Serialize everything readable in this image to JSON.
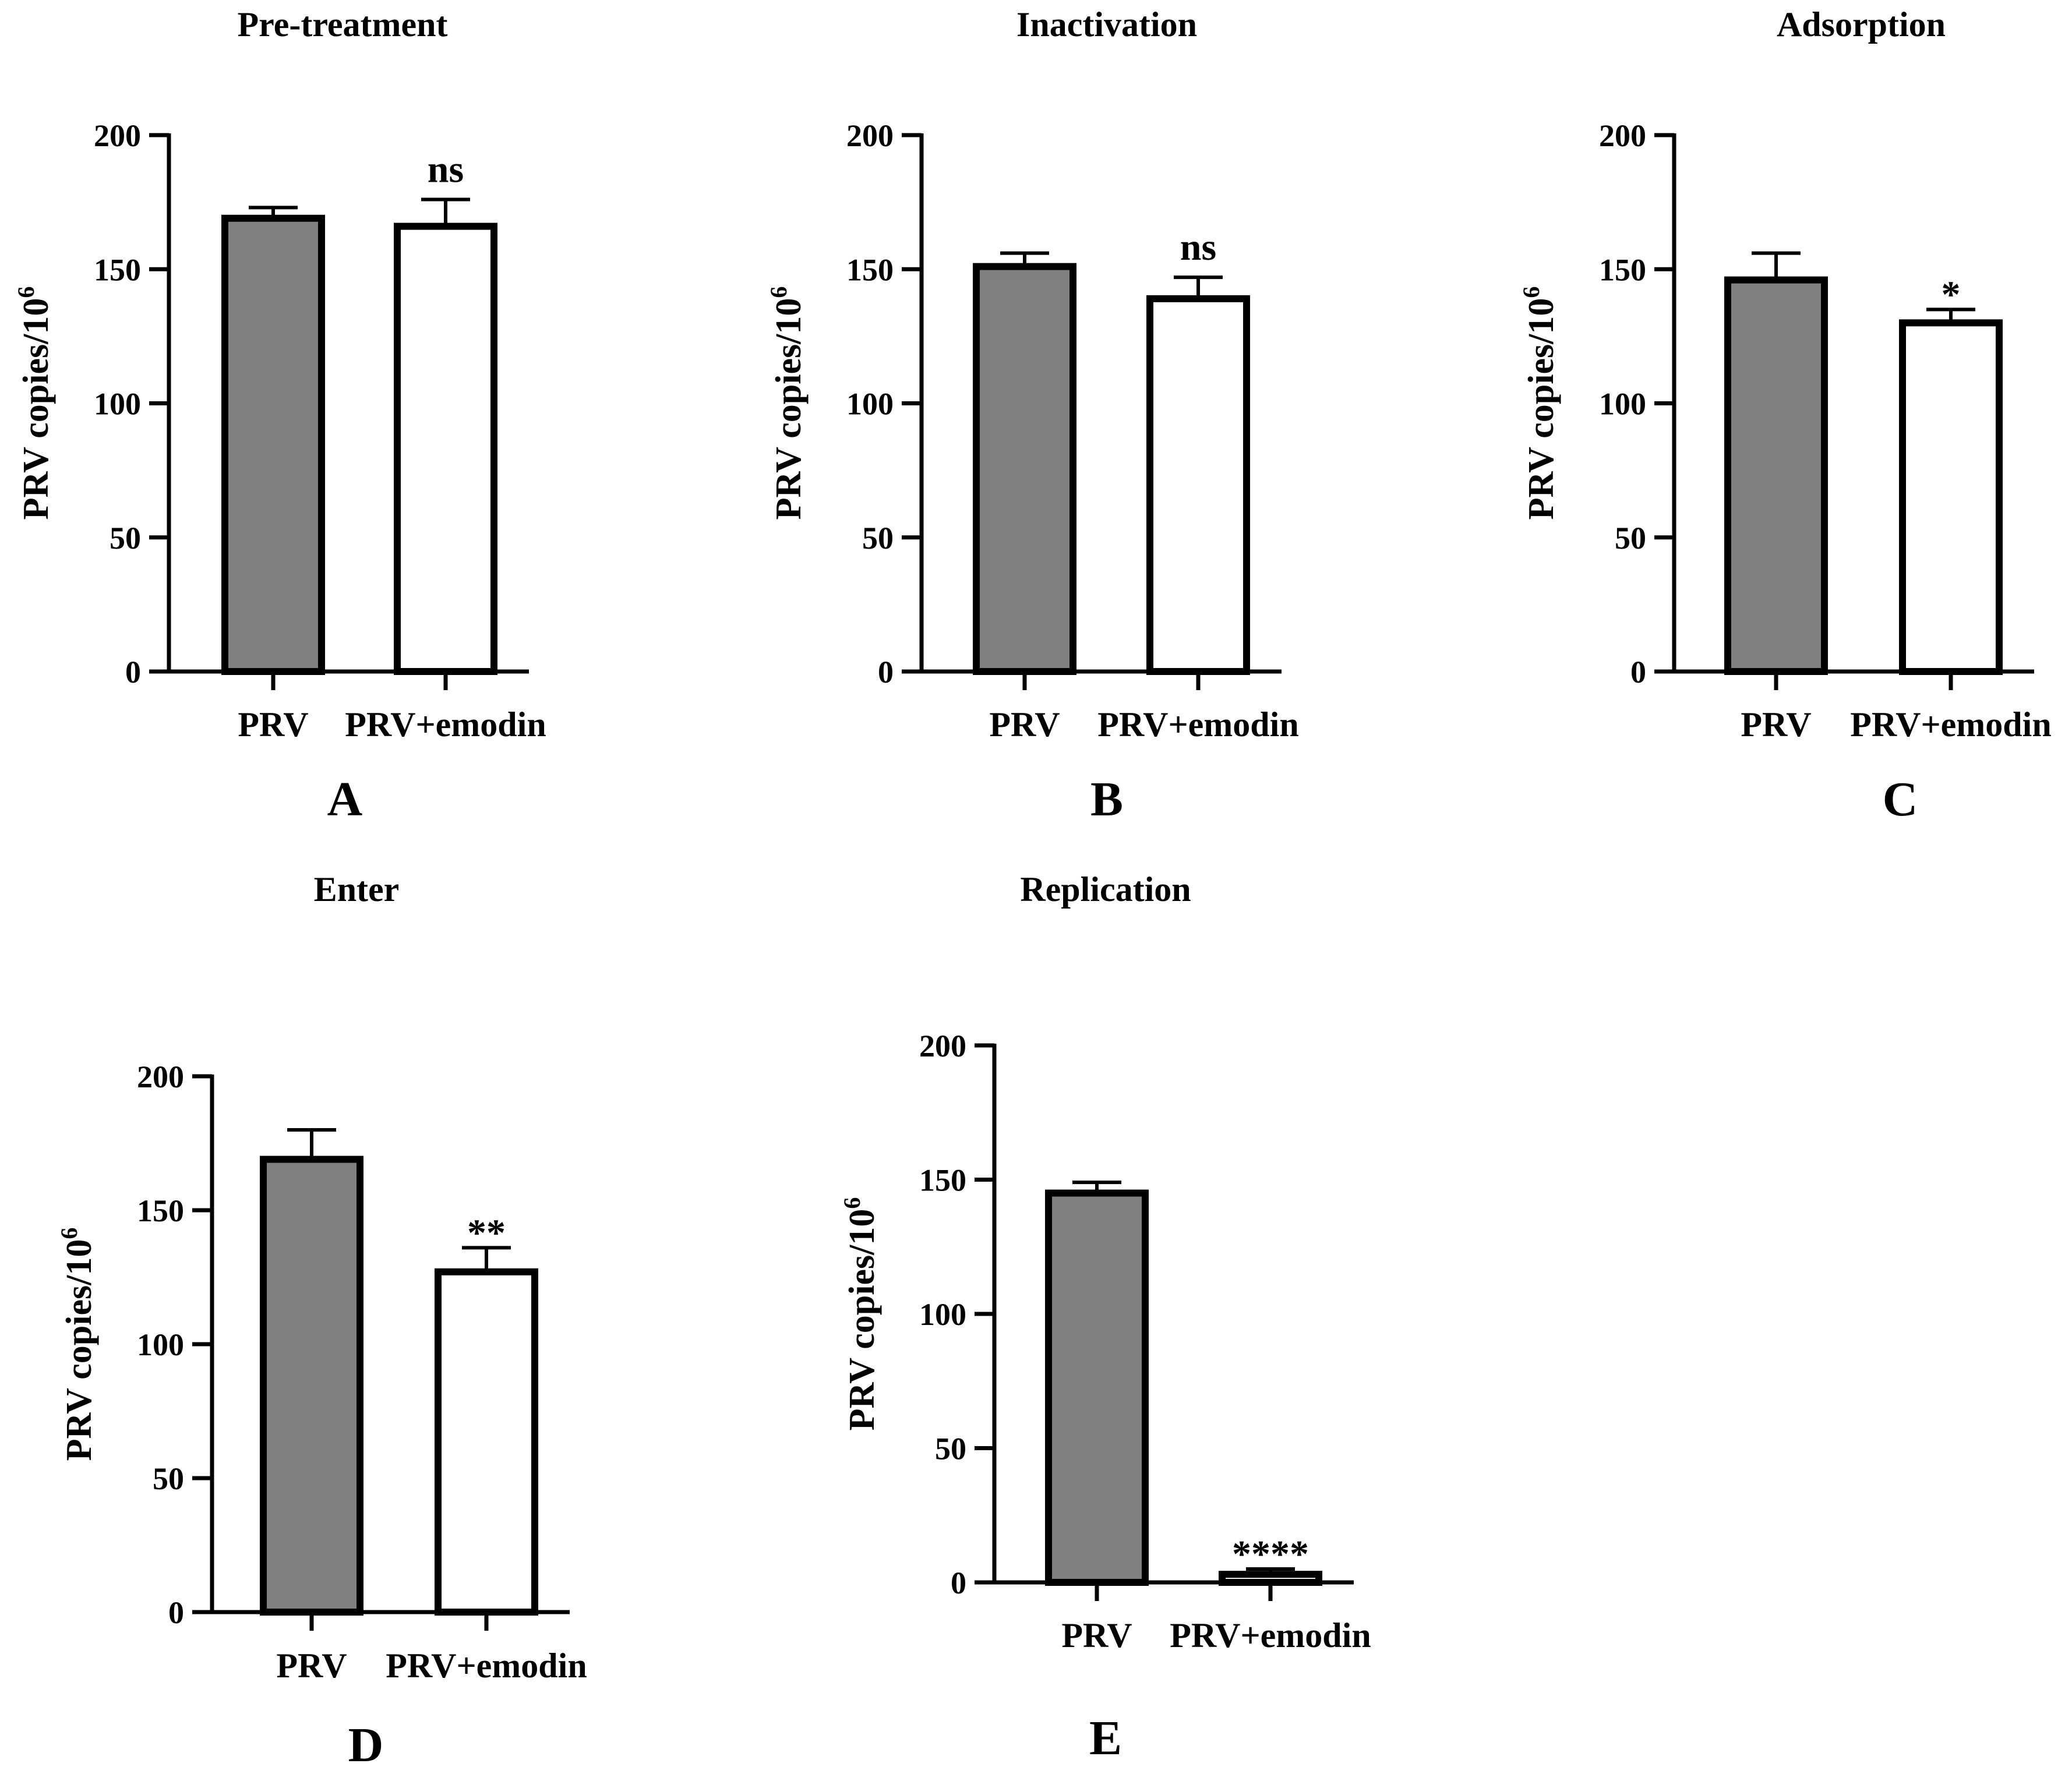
{
  "figure": {
    "panels": [
      {
        "letter": "A",
        "title": "Pre-treatment"
      },
      {
        "letter": "B",
        "title": "Inactivation"
      },
      {
        "letter": "C",
        "title": "Adsorption"
      },
      {
        "letter": "D",
        "title": "Enter"
      },
      {
        "letter": "E",
        "title": "Replication"
      }
    ]
  },
  "chart_data": [
    {
      "type": "bar",
      "panel": "A",
      "title": "Pre-treatment",
      "ylabel": "PRV copies/10",
      "ylabel_superscript": "6",
      "ylim": [
        0,
        200
      ],
      "yticks": [
        0,
        50,
        100,
        150,
        200
      ],
      "categories": [
        "PRV",
        "PRV+emodin"
      ],
      "values": [
        169,
        166
      ],
      "errors": [
        4,
        10
      ],
      "fills": [
        "#808080",
        "#ffffff"
      ],
      "significance": [
        "",
        "ns"
      ]
    },
    {
      "type": "bar",
      "panel": "B",
      "title": "Inactivation",
      "ylabel": "PRV copies/10",
      "ylabel_superscript": "6",
      "ylim": [
        0,
        200
      ],
      "yticks": [
        0,
        50,
        100,
        150,
        200
      ],
      "categories": [
        "PRV",
        "PRV+emodin"
      ],
      "values": [
        151,
        139
      ],
      "errors": [
        5,
        8
      ],
      "fills": [
        "#808080",
        "#ffffff"
      ],
      "significance": [
        "",
        "ns"
      ]
    },
    {
      "type": "bar",
      "panel": "C",
      "title": "Adsorption",
      "ylabel": "PRV copies/10",
      "ylabel_superscript": "6",
      "ylim": [
        0,
        200
      ],
      "yticks": [
        0,
        50,
        100,
        150,
        200
      ],
      "categories": [
        "PRV",
        "PRV+emodin"
      ],
      "values": [
        146,
        130
      ],
      "errors": [
        10,
        5
      ],
      "fills": [
        "#808080",
        "#ffffff"
      ],
      "significance": [
        "",
        "*"
      ]
    },
    {
      "type": "bar",
      "panel": "D",
      "title": "Enter",
      "ylabel": "PRV copies/10",
      "ylabel_superscript": "6",
      "ylim": [
        0,
        200
      ],
      "yticks": [
        0,
        50,
        100,
        150,
        200
      ],
      "categories": [
        "PRV",
        "PRV+emodin"
      ],
      "values": [
        169,
        127
      ],
      "errors": [
        11,
        9
      ],
      "fills": [
        "#808080",
        "#ffffff"
      ],
      "significance": [
        "",
        "**"
      ]
    },
    {
      "type": "bar",
      "panel": "E",
      "title": "Replication",
      "ylabel": "PRV copies/10",
      "ylabel_superscript": "6",
      "ylim": [
        0,
        200
      ],
      "yticks": [
        0,
        50,
        100,
        150,
        200
      ],
      "categories": [
        "PRV",
        "PRV+emodin"
      ],
      "values": [
        145,
        3
      ],
      "errors": [
        4,
        2
      ],
      "fills": [
        "#808080",
        "#ffffff"
      ],
      "significance": [
        "",
        "****"
      ]
    }
  ]
}
